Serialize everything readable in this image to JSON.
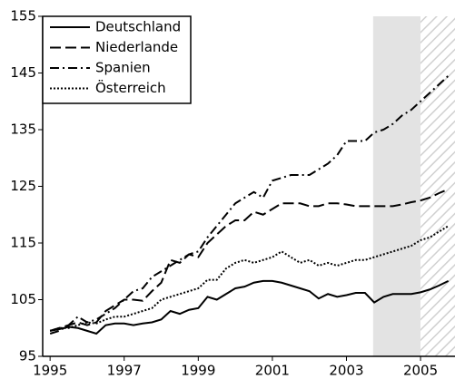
{
  "chart_data": {
    "type": "line",
    "x": [
      1995,
      1995.25,
      1995.5,
      1995.75,
      1996,
      1996.25,
      1996.5,
      1996.75,
      1997,
      1997.25,
      1997.5,
      1997.75,
      1998,
      1998.25,
      1998.5,
      1998.75,
      1999,
      1999.25,
      1999.5,
      1999.75,
      2000,
      2000.25,
      2000.5,
      2000.75,
      2001,
      2001.25,
      2001.5,
      2001.75,
      2002,
      2002.25,
      2002.5,
      2002.75,
      2003,
      2003.25,
      2003.5,
      2003.75,
      2004,
      2004.25,
      2004.5,
      2004.75,
      2005,
      2005.25,
      2005.5,
      2005.75
    ],
    "series": [
      {
        "name": "Deutschland",
        "color": "#000000",
        "style": "solid",
        "values": [
          99.5,
          99.8,
          100.2,
          100,
          99.5,
          99,
          100.5,
          100.8,
          100.8,
          100.5,
          100.8,
          101,
          101.5,
          103,
          102.5,
          103.2,
          103.5,
          105.5,
          105,
          106,
          107,
          107.3,
          108,
          108.3,
          108.3,
          108,
          107.5,
          107,
          106.5,
          105.2,
          106,
          105.5,
          105.8,
          106.2,
          106.2,
          104.5,
          105.5,
          106,
          106,
          106,
          106.3,
          106.8,
          107.5,
          108.3
        ]
      },
      {
        "name": "Niederlande",
        "color": "#000000",
        "style": "dashed",
        "values": [
          99.5,
          100,
          100.5,
          101,
          100.5,
          101,
          103,
          104,
          105,
          105,
          104.8,
          106.5,
          108,
          112,
          111.5,
          113,
          112.5,
          115,
          116.5,
          118,
          119,
          119,
          120.5,
          120,
          121,
          122,
          122,
          122,
          121.5,
          121.5,
          122,
          122,
          121.8,
          121.5,
          121.5,
          121.5,
          121.5,
          121.5,
          121.8,
          122.2,
          122.5,
          123,
          123.8,
          124.5
        ]
      },
      {
        "name": "Spanien",
        "color": "#000000",
        "style": "dashdot",
        "values": [
          99,
          99.5,
          100.5,
          102,
          101,
          101.5,
          102.5,
          103.5,
          105,
          106.5,
          107,
          109,
          110,
          111,
          112,
          113,
          113.5,
          116,
          118,
          120,
          122,
          123,
          124,
          123,
          126,
          126.5,
          127,
          127,
          127,
          128,
          129,
          130.5,
          133,
          133,
          133,
          134.5,
          135,
          136,
          137.5,
          138.5,
          140,
          141.5,
          143,
          144.5
        ]
      },
      {
        "name": "Österreich",
        "color": "#000000",
        "style": "dotted",
        "values": [
          99.5,
          100,
          100,
          100.5,
          101,
          100.8,
          101.5,
          102,
          102,
          102.5,
          103,
          103.5,
          105,
          105.5,
          106,
          106.5,
          107,
          108.5,
          108.5,
          110.5,
          111.5,
          112,
          111.5,
          112,
          112.5,
          113.5,
          112.5,
          111.5,
          112,
          111,
          111.5,
          111,
          111.5,
          112,
          112,
          112.5,
          113,
          113.5,
          114,
          114.5,
          115.5,
          116,
          117,
          118
        ]
      }
    ],
    "shaded": [
      2003.72,
      2005
    ],
    "hatched": [
      2005,
      2005.93
    ],
    "xlim": [
      1994.8,
      2005.93
    ],
    "xticks": [
      1995,
      1997,
      1999,
      2001,
      2003,
      2005
    ],
    "ylim": [
      95,
      155
    ],
    "yticks": [
      95,
      105,
      115,
      125,
      135,
      145,
      155
    ],
    "legend": "top-left"
  }
}
